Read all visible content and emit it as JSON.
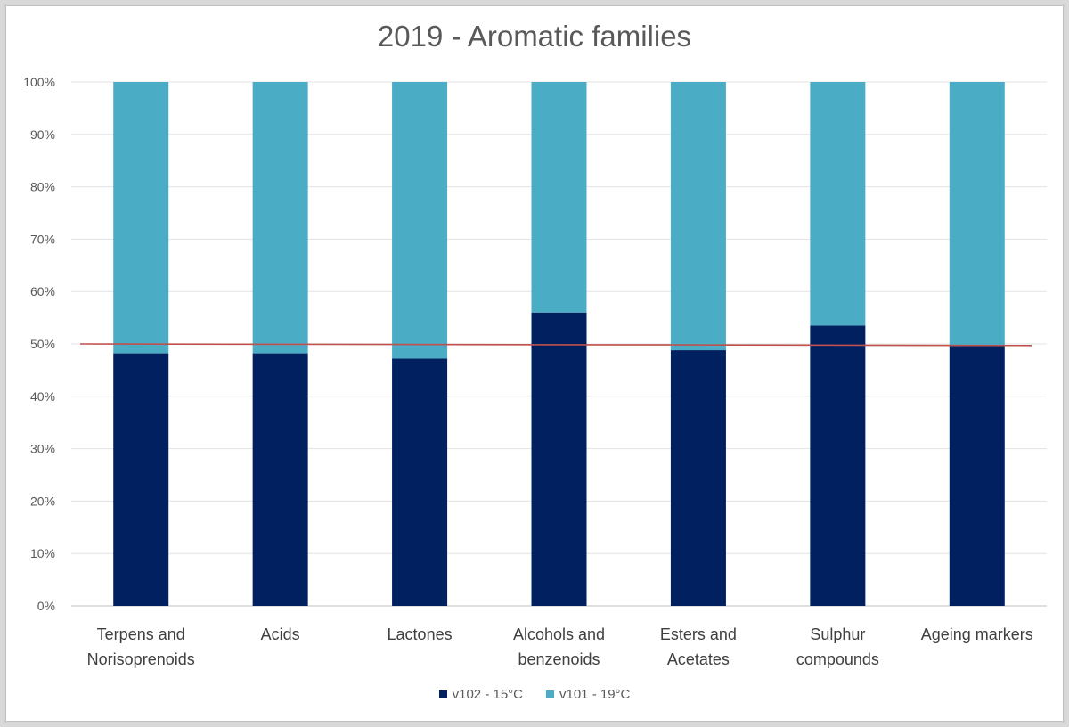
{
  "chart_data": {
    "type": "bar",
    "stacked": true,
    "title": "2019 - Aromatic families",
    "categories": [
      [
        "Terpens and",
        "Norisoprenoids"
      ],
      [
        "Acids"
      ],
      [
        "Lactones"
      ],
      [
        "Alcohols and",
        "benzenoids"
      ],
      [
        "Esters and",
        "Acetates"
      ],
      [
        "Sulphur",
        "compounds"
      ],
      [
        "Ageing markers"
      ]
    ],
    "series": [
      {
        "name": "v102 - 15°C",
        "color": "#002060",
        "values": [
          48.2,
          48.2,
          47.2,
          56.0,
          48.8,
          53.5,
          49.6
        ]
      },
      {
        "name": "v101 - 19°C",
        "color": "#4bacc6",
        "values": [
          51.8,
          51.8,
          52.8,
          44.0,
          51.2,
          46.5,
          50.4
        ]
      }
    ],
    "ylim": [
      0,
      100
    ],
    "yticks": [
      "0%",
      "10%",
      "20%",
      "30%",
      "40%",
      "50%",
      "60%",
      "70%",
      "80%",
      "90%",
      "100%"
    ],
    "reference_line": {
      "from": 50,
      "to": 49.7,
      "color": "#c0504d"
    },
    "grid": true,
    "legend": "bottom-center"
  }
}
